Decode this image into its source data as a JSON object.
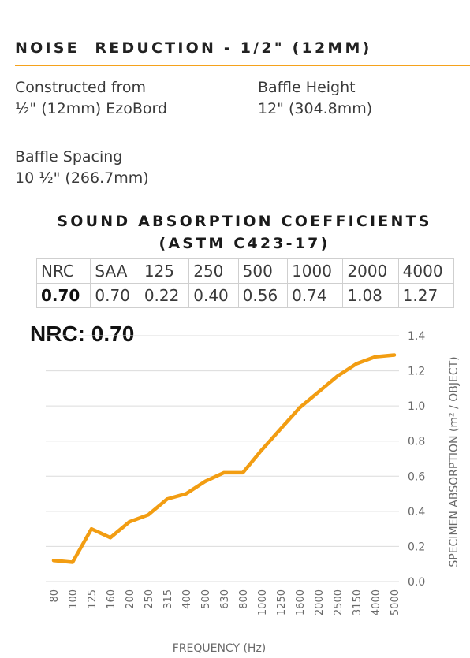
{
  "header": {
    "title": "NOISE  REDUCTION - 1/2\" (12MM)"
  },
  "specs": {
    "constructed_label": "Constructed from",
    "constructed_value": "½\" (12mm) EzoBord",
    "height_label": "Baffle Height",
    "height_value": "12\" (304.8mm)",
    "spacing_label": "Baffle Spacing",
    "spacing_value": "10 ½\" (266.7mm)"
  },
  "coefficients": {
    "title_line1": "SOUND ABSORPTION COEFFICIENTS",
    "title_line2": "(ASTM C423-17)",
    "headers": [
      "NRC",
      "SAA",
      "125",
      "250",
      "500",
      "1000",
      "2000",
      "4000"
    ],
    "values": [
      "0.70",
      "0.70",
      "0.22",
      "0.40",
      "0.56",
      "0.74",
      "1.08",
      "1.27"
    ]
  },
  "nrc_label": "NRC: 0.70",
  "colors": {
    "accent": "#f5a21c",
    "line": "#f29d12",
    "grid": "#dcdcdc"
  },
  "chart_data": {
    "type": "line",
    "xlabel": "FREQUENCY (Hz)",
    "ylabel": "SPECIMEN ABSORPTION (m² / OBJECT)",
    "ylim": [
      0,
      1.4
    ],
    "y_ticks": [
      "0.0",
      "0.2",
      "0.4",
      "0.6",
      "0.8",
      "1.0",
      "1.2",
      "1.4"
    ],
    "y_axis_position": "right",
    "grid": true,
    "categories": [
      "80",
      "100",
      "125",
      "160",
      "200",
      "250",
      "315",
      "400",
      "500",
      "630",
      "800",
      "1000",
      "1250",
      "1600",
      "2000",
      "2500",
      "3150",
      "4000",
      "5000"
    ],
    "series": [
      {
        "values": [
          0.12,
          0.11,
          0.3,
          0.25,
          0.34,
          0.38,
          0.47,
          0.5,
          0.57,
          0.62,
          0.62,
          0.75,
          0.87,
          0.99,
          1.08,
          1.17,
          1.24,
          1.28,
          1.29
        ]
      }
    ]
  }
}
